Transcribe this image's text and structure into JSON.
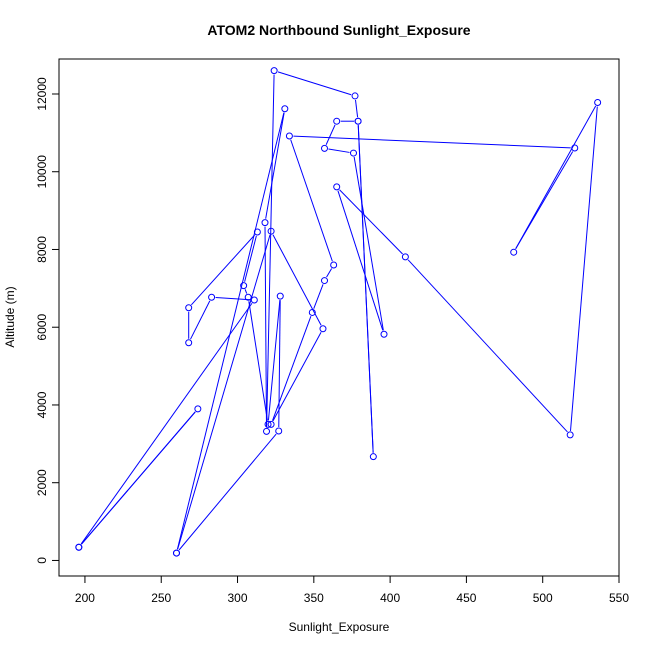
{
  "chart_data": {
    "type": "line",
    "title": "ATOM2 Northbound Sunlight_Exposure",
    "xlabel": "Sunlight_Exposure",
    "ylabel": "Altitude (m)",
    "xlim": [
      183,
      550
    ],
    "ylim": [
      -400,
      12900
    ],
    "xticks": [
      200,
      250,
      300,
      350,
      400,
      450,
      500,
      550
    ],
    "yticks": [
      0,
      2000,
      4000,
      6000,
      8000,
      10000,
      12000
    ],
    "grid": false,
    "legend": "none",
    "series": [
      {
        "color": "#0000ff",
        "marker": "open-circle",
        "points": [
          [
            196,
            340
          ],
          [
            274,
            3900
          ],
          [
            196,
            340
          ],
          [
            311,
            6700
          ],
          [
            283,
            6770
          ],
          [
            268,
            5600
          ],
          [
            268,
            6500
          ],
          [
            313,
            8450
          ],
          [
            304,
            7070
          ],
          [
            307,
            6770
          ],
          [
            320,
            3500
          ],
          [
            328,
            6800
          ],
          [
            327,
            3330
          ],
          [
            260,
            190
          ],
          [
            331,
            11620
          ],
          [
            318,
            8690
          ],
          [
            319,
            3320
          ],
          [
            324,
            12600
          ],
          [
            377,
            11950
          ],
          [
            379,
            11300
          ],
          [
            389,
            2670
          ],
          [
            379,
            11300
          ],
          [
            365,
            11300
          ],
          [
            357,
            10600
          ],
          [
            376,
            10480
          ],
          [
            396,
            5820
          ],
          [
            365,
            9610
          ],
          [
            410,
            7810
          ],
          [
            518,
            3230
          ],
          [
            536,
            11780
          ],
          [
            481,
            7930
          ],
          [
            521,
            10610
          ],
          [
            334,
            10920
          ],
          [
            363,
            7600
          ],
          [
            357,
            7200
          ],
          [
            349,
            6380
          ],
          [
            322,
            3500
          ],
          [
            356,
            5960
          ],
          [
            322,
            8470
          ],
          [
            260,
            190
          ]
        ]
      }
    ]
  }
}
